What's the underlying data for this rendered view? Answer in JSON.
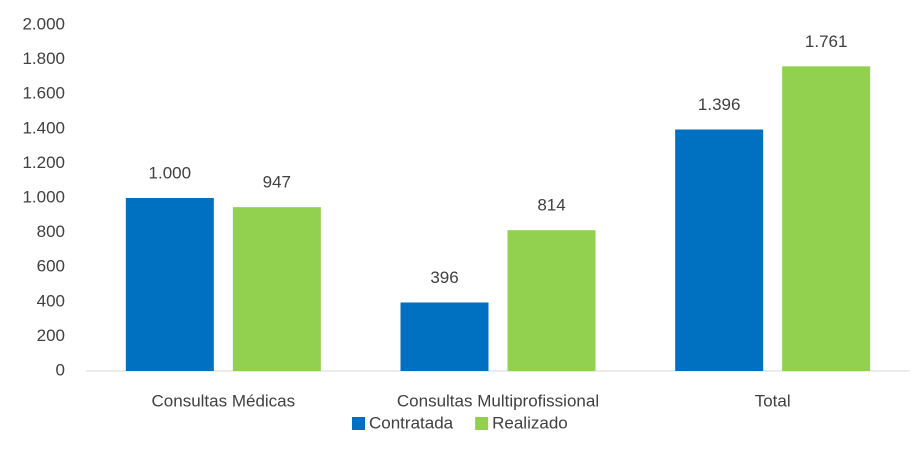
{
  "chart_data": {
    "type": "bar",
    "categories": [
      "Consultas Médicas",
      "Consultas Multiprofissional",
      "Total"
    ],
    "series": [
      {
        "name": "Contratada",
        "color": "#0070c0",
        "values": [
          1000,
          396,
          1396
        ],
        "value_labels": [
          "1.000",
          "396",
          "1.396"
        ]
      },
      {
        "name": "Realizado",
        "color": "#92d050",
        "values": [
          947,
          814,
          1761
        ],
        "value_labels": [
          "947",
          "814",
          "1.761"
        ]
      }
    ],
    "ylim": [
      0,
      2000
    ],
    "yticks": [
      0,
      200,
      400,
      600,
      800,
      {
        "value": 1000,
        "label": "1.000"
      },
      {
        "value": 1200,
        "label": "1.200"
      },
      {
        "value": 1400,
        "label": "1.400"
      },
      {
        "value": 1600,
        "label": "1.600"
      },
      {
        "value": 1800,
        "label": "1.800"
      },
      {
        "value": 2000,
        "label": "2.000"
      }
    ],
    "grid": false,
    "legend": "bottom"
  }
}
